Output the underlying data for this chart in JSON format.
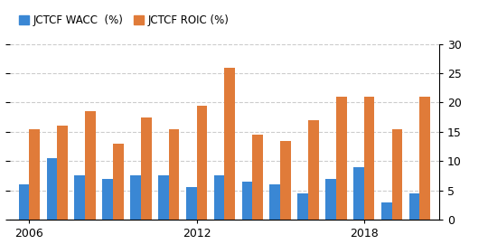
{
  "years": [
    2006,
    2007,
    2008,
    2009,
    2010,
    2011,
    2012,
    2013,
    2014,
    2015,
    2016,
    2017,
    2018,
    2019,
    2020
  ],
  "wacc": [
    6.0,
    10.5,
    7.5,
    7.0,
    7.5,
    7.5,
    5.5,
    7.5,
    6.5,
    6.0,
    4.5,
    7.0,
    9.0,
    3.0,
    4.5
  ],
  "roic": [
    15.5,
    16.0,
    18.5,
    13.0,
    17.5,
    15.5,
    19.5,
    26.0,
    14.5,
    13.5,
    17.0,
    21.0,
    21.0,
    15.5,
    21.0
  ],
  "wacc_color": "#3a87d4",
  "roic_color": "#e07b39",
  "legend_labels": [
    "JCTCF WACC  (%)",
    "JCTCF ROIC (%)"
  ],
  "ylim": [
    0,
    30
  ],
  "yticks": [
    0,
    5,
    10,
    15,
    20,
    25,
    30
  ],
  "grid_color": "#cccccc",
  "bg_color": "#ffffff",
  "bar_width": 0.38,
  "tick_years": [
    2006,
    2012,
    2018
  ]
}
